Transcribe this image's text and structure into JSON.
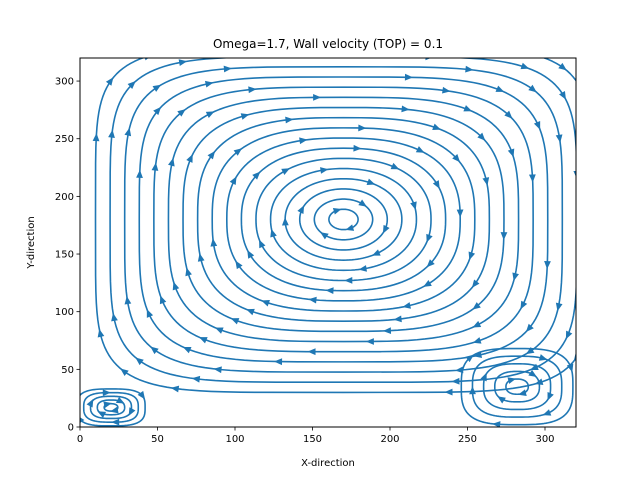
{
  "chart_data": {
    "type": "streamplot",
    "title": "Omega=1.7, Wall velocity (TOP) = 0.1",
    "xlabel": "X-direction",
    "ylabel": "Y-direction",
    "xlim": [
      0,
      320
    ],
    "ylim": [
      0,
      320
    ],
    "xticks": [
      "0",
      "50",
      "100",
      "150",
      "200",
      "250",
      "300"
    ],
    "yticks": [
      "0",
      "50",
      "100",
      "150",
      "200",
      "250",
      "300"
    ],
    "grid": false,
    "color": "#1f77b4",
    "flow_direction": "clockwise",
    "vortices": [
      {
        "name": "primary",
        "center": [
          170,
          180
        ],
        "rx_max": 160,
        "ry_max": 150
      },
      {
        "name": "bottom-right corner",
        "center": [
          282,
          35
        ],
        "rx_max": 36,
        "ry_max": 33
      },
      {
        "name": "bottom-left corner",
        "center": [
          20,
          17
        ],
        "rx_max": 22,
        "ry_max": 16
      }
    ]
  }
}
